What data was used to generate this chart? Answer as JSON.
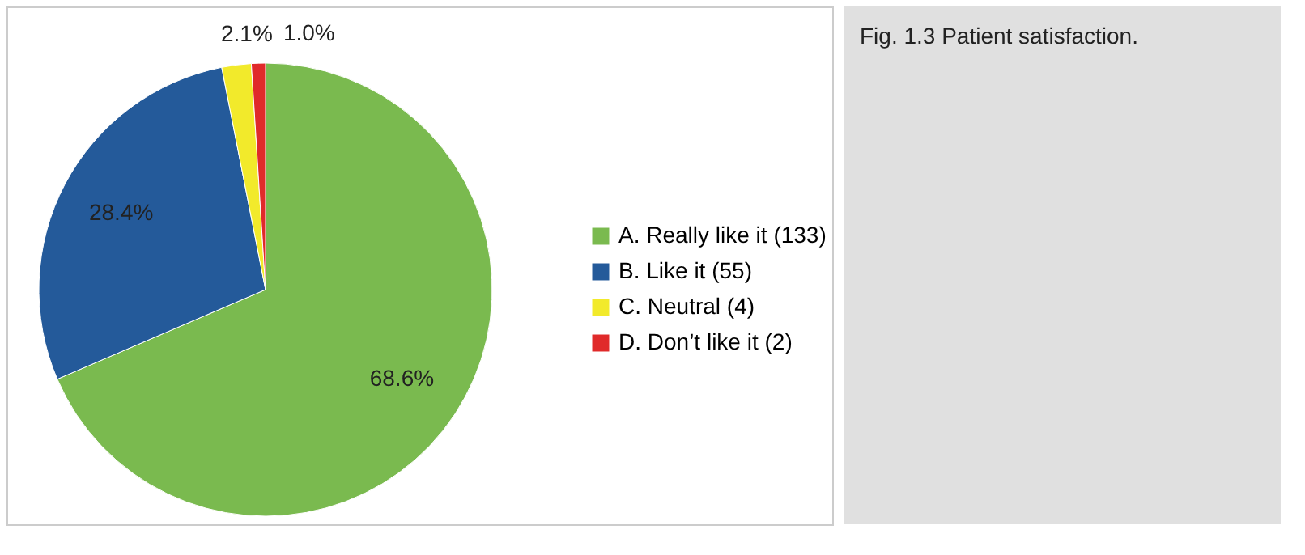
{
  "chart_data": {
    "type": "pie",
    "categories": [
      "A. Really like it (133)",
      "B. Like it (55)",
      "C. Neutral (4)",
      "D. Don’t like it (2)"
    ],
    "values": [
      68.6,
      28.4,
      2.1,
      1.0
    ],
    "colors": [
      "#7aba4f",
      "#245a9a",
      "#f2ea2b",
      "#e02a2a"
    ],
    "value_labels": [
      "68.6%",
      "28.4%",
      "2.1%",
      "1.0%"
    ],
    "legend": "right",
    "annotations": [
      "Fig. 1.3  Patient satisfaction."
    ]
  }
}
